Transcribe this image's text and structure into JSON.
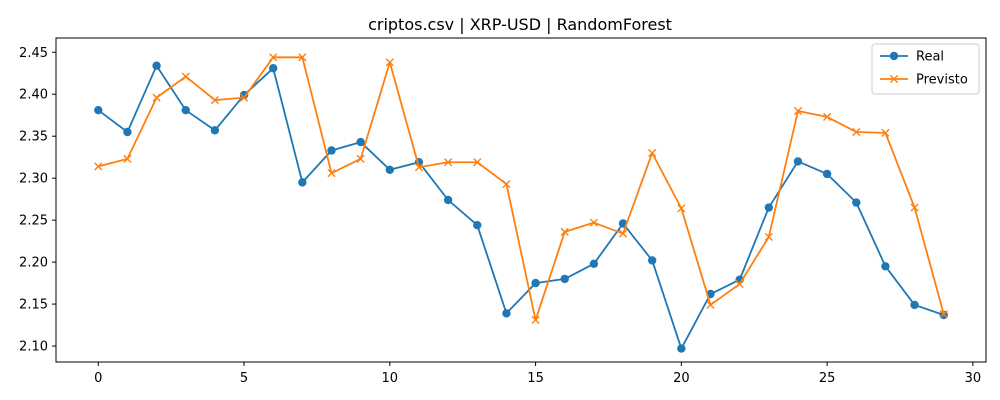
{
  "chart_data": {
    "type": "line",
    "title": "criptos.csv | XRP-USD | RandomForest",
    "xlabel": "",
    "ylabel": "",
    "xlim": [
      -1.45,
      30.45
    ],
    "ylim": [
      2.081,
      2.467
    ],
    "x_ticks": [
      0,
      5,
      10,
      15,
      20,
      25,
      30
    ],
    "x_tick_labels": [
      "0",
      "5",
      "10",
      "15",
      "20",
      "25",
      "30"
    ],
    "y_ticks": [
      2.1,
      2.15,
      2.2,
      2.25,
      2.3,
      2.35,
      2.4,
      2.45
    ],
    "y_tick_labels": [
      "2.10",
      "2.15",
      "2.20",
      "2.25",
      "2.30",
      "2.35",
      "2.40",
      "2.45"
    ],
    "grid": false,
    "legend_position": "top-right",
    "x": [
      0,
      1,
      2,
      3,
      4,
      5,
      6,
      7,
      8,
      9,
      10,
      11,
      12,
      13,
      14,
      15,
      16,
      17,
      18,
      19,
      20,
      21,
      22,
      23,
      24,
      25,
      26,
      27,
      28,
      29
    ],
    "series": [
      {
        "name": "Real",
        "color": "#1f77b4",
        "marker": "circle",
        "values": [
          2.381,
          2.355,
          2.434,
          2.381,
          2.357,
          2.399,
          2.431,
          2.295,
          2.333,
          2.343,
          2.31,
          2.319,
          2.274,
          2.244,
          2.139,
          2.175,
          2.18,
          2.198,
          2.246,
          2.202,
          2.097,
          2.162,
          2.179,
          2.265,
          2.32,
          2.305,
          2.271,
          2.195,
          2.149,
          2.137
        ]
      },
      {
        "name": "Previsto",
        "color": "#ff7f0e",
        "marker": "x",
        "values": [
          2.314,
          2.323,
          2.396,
          2.421,
          2.393,
          2.396,
          2.444,
          2.444,
          2.306,
          2.323,
          2.438,
          2.313,
          2.319,
          2.319,
          2.293,
          2.131,
          2.236,
          2.247,
          2.234,
          2.33,
          2.264,
          2.149,
          2.174,
          2.23,
          2.38,
          2.373,
          2.355,
          2.354,
          2.265,
          2.138
        ]
      }
    ]
  }
}
